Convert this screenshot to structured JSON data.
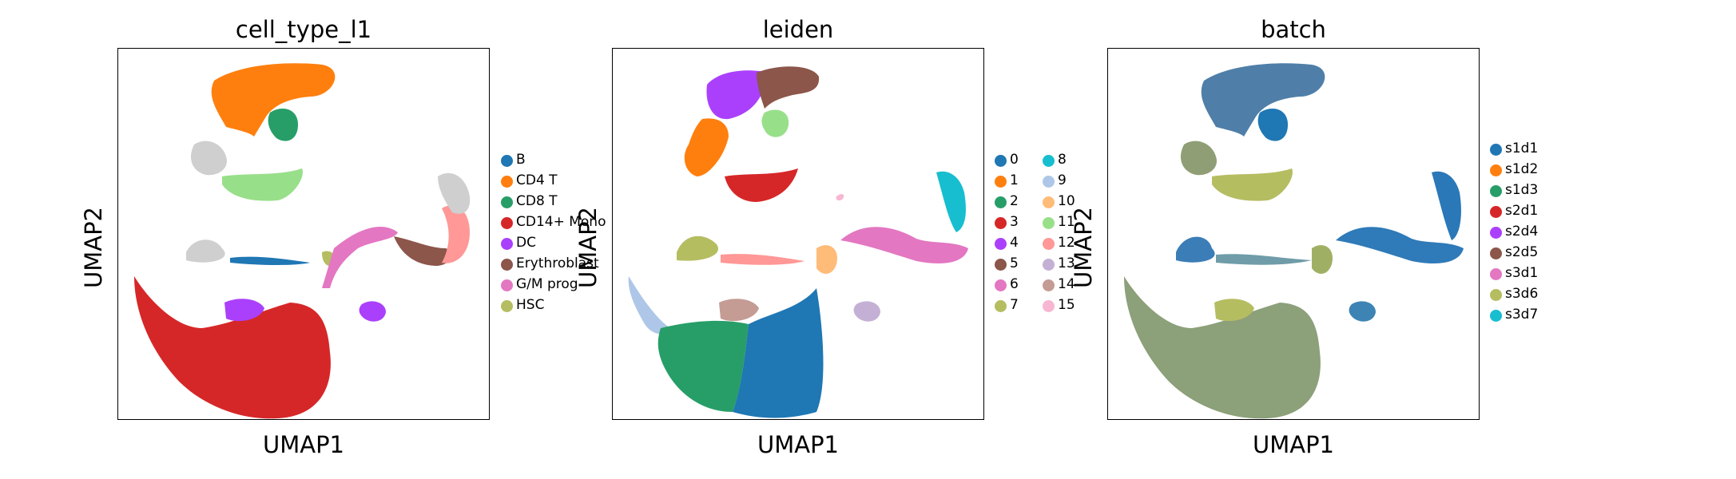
{
  "chart_data": [
    {
      "type": "scatter",
      "title": "cell_type_l1",
      "xlabel": "UMAP1",
      "ylabel": "UMAP2",
      "grid": false,
      "legend_placement": "right",
      "legend": [
        {
          "label": "B",
          "color": "#1f77b4"
        },
        {
          "label": "CD4 T",
          "color": "#ff7f0e"
        },
        {
          "label": "CD8 T",
          "color": "#279e68"
        },
        {
          "label": "CD14+ Mono",
          "color": "#d62728"
        },
        {
          "label": "DC",
          "color": "#aa40fc"
        },
        {
          "label": "Erythroblast",
          "color": "#8c564b"
        },
        {
          "label": "G/M prog",
          "color": "#e377c2"
        },
        {
          "label": "HSC",
          "color": "#b5bd61"
        }
      ]
    },
    {
      "type": "scatter",
      "title": "leiden",
      "xlabel": "UMAP1",
      "ylabel": "UMAP2",
      "grid": false,
      "legend_placement": "right",
      "legend": [
        {
          "label": "0",
          "color": "#1f77b4"
        },
        {
          "label": "1",
          "color": "#ff7f0e"
        },
        {
          "label": "2",
          "color": "#279e68"
        },
        {
          "label": "3",
          "color": "#d62728"
        },
        {
          "label": "4",
          "color": "#aa40fc"
        },
        {
          "label": "5",
          "color": "#8c564b"
        },
        {
          "label": "6",
          "color": "#e377c2"
        },
        {
          "label": "7",
          "color": "#b5bd61"
        },
        {
          "label": "8",
          "color": "#17becf"
        },
        {
          "label": "9",
          "color": "#aec7e8"
        },
        {
          "label": "10",
          "color": "#ffbb78"
        },
        {
          "label": "11",
          "color": "#98df8a"
        },
        {
          "label": "12",
          "color": "#ff9896"
        },
        {
          "label": "13",
          "color": "#c5b0d5"
        },
        {
          "label": "14",
          "color": "#c49c94"
        },
        {
          "label": "15",
          "color": "#f7b6d2"
        }
      ]
    },
    {
      "type": "scatter",
      "title": "batch",
      "xlabel": "UMAP1",
      "ylabel": "UMAP2",
      "grid": false,
      "legend_placement": "right",
      "legend": [
        {
          "label": "s1d1",
          "color": "#1f77b4"
        },
        {
          "label": "s1d2",
          "color": "#ff7f0e"
        },
        {
          "label": "s1d3",
          "color": "#279e68"
        },
        {
          "label": "s2d1",
          "color": "#d62728"
        },
        {
          "label": "s2d4",
          "color": "#aa40fc"
        },
        {
          "label": "s2d5",
          "color": "#8c564b"
        },
        {
          "label": "s3d1",
          "color": "#e377c2"
        },
        {
          "label": "s3d6",
          "color": "#b5bd61"
        },
        {
          "label": "s3d7",
          "color": "#17becf"
        }
      ]
    }
  ]
}
